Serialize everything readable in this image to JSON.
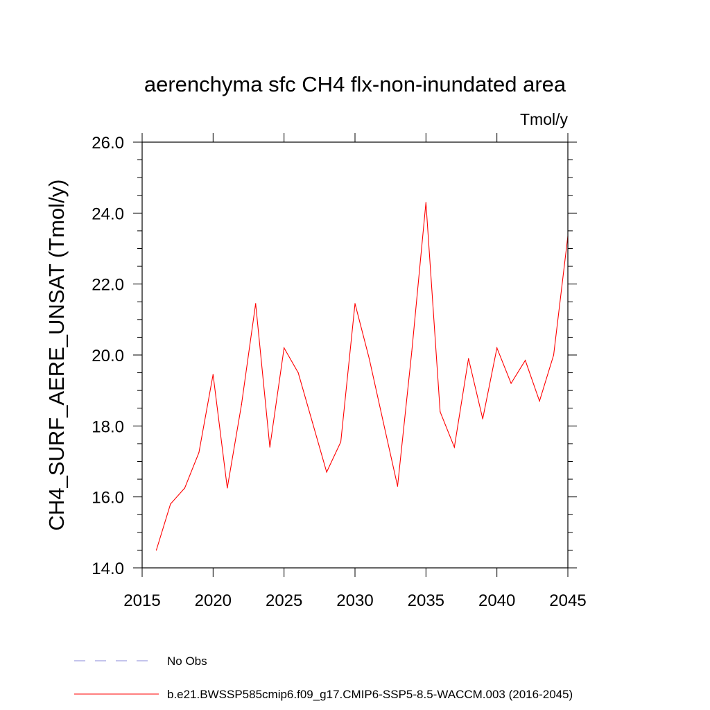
{
  "chart_data": {
    "type": "line",
    "title": "aerenchyma sfc CH4 flx-non-inundated area",
    "units": "Tmol/y",
    "ylabel": "CH4_SURF_AERE_UNSAT  (Tmol/y)",
    "xlabel": "",
    "xlim": [
      2015,
      2045
    ],
    "ylim": [
      14.0,
      26.0
    ],
    "x_ticks": [
      "2015",
      "2020",
      "2025",
      "2030",
      "2035",
      "2040",
      "2045"
    ],
    "x_tick_values": [
      2015,
      2020,
      2025,
      2030,
      2035,
      2040,
      2045
    ],
    "y_ticks": [
      "14.0",
      "16.0",
      "18.0",
      "20.0",
      "22.0",
      "24.0",
      "26.0"
    ],
    "y_tick_values": [
      14,
      16,
      18,
      20,
      22,
      24,
      26
    ],
    "series": [
      {
        "name": "b.e21.BWSSP585cmip6.f09_g17.CMIP6-SSP5-8.5-WACCM.003 (2016-2045)",
        "color": "#ff0000",
        "style": "solid",
        "x": [
          2016,
          2017,
          2018,
          2019,
          2020,
          2021,
          2022,
          2023,
          2024,
          2025,
          2026,
          2027,
          2028,
          2029,
          2030,
          2031,
          2032,
          2033,
          2034,
          2035,
          2036,
          2037,
          2038,
          2039,
          2040,
          2041,
          2042,
          2043,
          2044,
          2045
        ],
        "y": [
          14.5,
          15.8,
          16.25,
          17.25,
          19.45,
          16.25,
          18.6,
          21.45,
          17.4,
          20.2,
          19.5,
          18.1,
          16.7,
          17.55,
          21.45,
          19.9,
          18.1,
          16.3,
          20.1,
          24.3,
          18.4,
          17.4,
          19.9,
          18.2,
          20.2,
          19.2,
          19.85,
          18.7,
          20.0,
          23.35
        ]
      }
    ],
    "legend": [
      {
        "label": "No Obs",
        "color": "#8a8ad8",
        "style": "dashed"
      },
      {
        "label": "b.e21.BWSSP585cmip6.f09_g17.CMIP6-SSP5-8.5-WACCM.003 (2016-2045)",
        "color": "#ff0000",
        "style": "solid"
      }
    ],
    "legend_position": "bottom-left",
    "grid": false
  }
}
